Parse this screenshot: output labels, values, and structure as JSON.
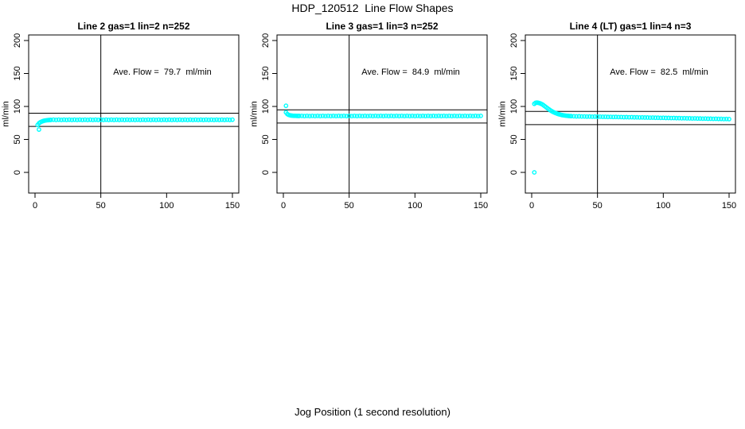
{
  "page": {
    "title": "HDP_120512  Line Flow Shapes",
    "xlabel": "Jog Position (1 second resolution)",
    "background": "#ffffff"
  },
  "colors": {
    "point": "#00ffff",
    "ref_line": "#000000",
    "box": "#000000",
    "text": "#000000"
  },
  "axes": {
    "y_ticks": [
      0,
      50,
      100,
      150,
      200
    ],
    "x_ticks": [
      0,
      50,
      100,
      150
    ],
    "ylim": [
      0,
      200
    ],
    "xlim": [
      0,
      150
    ]
  },
  "chart_data": [
    {
      "type": "scatter",
      "title": "Line 2 gas=1 lin=2 n=252",
      "annotation": "Ave. Flow =  79.7  ml/min",
      "avg_flow": 79.7,
      "ylabel": "ml/min",
      "ref_lines_y": [
        89.7,
        69.7
      ],
      "vline_x": 50,
      "outliers": [
        [
          3,
          65
        ]
      ],
      "points": [
        [
          2,
          72
        ],
        [
          3,
          74.5
        ],
        [
          4,
          76
        ],
        [
          5,
          77
        ],
        [
          6,
          77.8
        ],
        [
          7,
          78.4
        ],
        [
          8,
          78.8
        ],
        [
          9,
          79.1
        ],
        [
          10,
          79.3
        ],
        [
          11,
          79.5
        ],
        [
          12,
          79.6
        ],
        [
          14,
          79.9
        ],
        [
          16,
          79.6
        ],
        [
          18,
          79.9
        ],
        [
          20,
          79.6
        ],
        [
          22,
          79.9
        ],
        [
          24,
          79.6
        ],
        [
          26,
          79.9
        ],
        [
          28,
          79.6
        ],
        [
          30,
          79.9
        ],
        [
          32,
          79.6
        ],
        [
          34,
          79.9
        ],
        [
          36,
          79.6
        ],
        [
          38,
          79.9
        ],
        [
          40,
          79.6
        ],
        [
          42,
          79.9
        ],
        [
          44,
          79.6
        ],
        [
          46,
          79.9
        ],
        [
          48,
          79.6
        ],
        [
          50,
          79.9
        ],
        [
          52,
          79.6
        ],
        [
          54,
          79.9
        ],
        [
          56,
          79.6
        ],
        [
          58,
          79.9
        ],
        [
          60,
          79.6
        ],
        [
          62,
          79.9
        ],
        [
          64,
          79.6
        ],
        [
          66,
          79.9
        ],
        [
          68,
          79.6
        ],
        [
          70,
          79.9
        ],
        [
          72,
          79.6
        ],
        [
          74,
          79.9
        ],
        [
          76,
          79.6
        ],
        [
          78,
          79.9
        ],
        [
          80,
          79.6
        ],
        [
          82,
          79.9
        ],
        [
          84,
          79.6
        ],
        [
          86,
          79.9
        ],
        [
          88,
          79.6
        ],
        [
          90,
          79.9
        ],
        [
          92,
          79.6
        ],
        [
          94,
          79.9
        ],
        [
          96,
          79.6
        ],
        [
          98,
          79.9
        ],
        [
          100,
          79.6
        ],
        [
          102,
          79.9
        ],
        [
          104,
          79.6
        ],
        [
          106,
          79.9
        ],
        [
          108,
          79.6
        ],
        [
          110,
          79.9
        ],
        [
          112,
          79.6
        ],
        [
          114,
          79.9
        ],
        [
          116,
          79.6
        ],
        [
          118,
          79.9
        ],
        [
          120,
          79.6
        ],
        [
          122,
          79.9
        ],
        [
          124,
          79.6
        ],
        [
          126,
          79.9
        ],
        [
          128,
          79.6
        ],
        [
          130,
          79.9
        ],
        [
          132,
          79.6
        ],
        [
          134,
          79.9
        ],
        [
          136,
          79.6
        ],
        [
          138,
          79.9
        ],
        [
          140,
          79.6
        ],
        [
          142,
          79.9
        ],
        [
          144,
          79.6
        ],
        [
          146,
          79.9
        ],
        [
          148,
          79.6
        ],
        [
          150,
          79.9
        ]
      ]
    },
    {
      "type": "scatter",
      "title": "Line 3 gas=1 lin=3 n=252",
      "annotation": "Ave. Flow =  84.9  ml/min",
      "avg_flow": 84.9,
      "ylabel": "ml/min",
      "ref_lines_y": [
        94.9,
        74.9
      ],
      "vline_x": 50,
      "outliers": [
        [
          2,
          101
        ]
      ],
      "points": [
        [
          2,
          91
        ],
        [
          3,
          88.5
        ],
        [
          4,
          87.2
        ],
        [
          5,
          86.6
        ],
        [
          6,
          86.2
        ],
        [
          7,
          86
        ],
        [
          8,
          85.8
        ],
        [
          9,
          85.8
        ],
        [
          10,
          85.7
        ],
        [
          11,
          85.6
        ],
        [
          12,
          85.6
        ],
        [
          14,
          85.7
        ],
        [
          16,
          85.4
        ],
        [
          18,
          85.7
        ],
        [
          20,
          85.4
        ],
        [
          22,
          85.7
        ],
        [
          24,
          85.4
        ],
        [
          26,
          85.7
        ],
        [
          28,
          85.4
        ],
        [
          30,
          85.7
        ],
        [
          32,
          85.4
        ],
        [
          34,
          85.7
        ],
        [
          36,
          85.4
        ],
        [
          38,
          85.7
        ],
        [
          40,
          85.4
        ],
        [
          42,
          85.7
        ],
        [
          44,
          85.4
        ],
        [
          46,
          85.7
        ],
        [
          48,
          85.4
        ],
        [
          50,
          85.7
        ],
        [
          52,
          85.4
        ],
        [
          54,
          85.7
        ],
        [
          56,
          85.4
        ],
        [
          58,
          85.7
        ],
        [
          60,
          85.4
        ],
        [
          62,
          85.7
        ],
        [
          64,
          85.4
        ],
        [
          66,
          85.7
        ],
        [
          68,
          85.4
        ],
        [
          70,
          85.7
        ],
        [
          72,
          85.4
        ],
        [
          74,
          85.7
        ],
        [
          76,
          85.4
        ],
        [
          78,
          85.7
        ],
        [
          80,
          85.4
        ],
        [
          82,
          85.7
        ],
        [
          84,
          85.4
        ],
        [
          86,
          85.7
        ],
        [
          88,
          85.4
        ],
        [
          90,
          85.7
        ],
        [
          92,
          85.4
        ],
        [
          94,
          85.7
        ],
        [
          96,
          85.4
        ],
        [
          98,
          85.7
        ],
        [
          100,
          85.4
        ],
        [
          102,
          85.7
        ],
        [
          104,
          85.4
        ],
        [
          106,
          85.7
        ],
        [
          108,
          85.4
        ],
        [
          110,
          85.7
        ],
        [
          112,
          85.4
        ],
        [
          114,
          85.7
        ],
        [
          116,
          85.4
        ],
        [
          118,
          85.7
        ],
        [
          120,
          85.4
        ],
        [
          122,
          85.7
        ],
        [
          124,
          85.4
        ],
        [
          126,
          85.7
        ],
        [
          128,
          85.4
        ],
        [
          130,
          85.7
        ],
        [
          132,
          85.4
        ],
        [
          134,
          85.7
        ],
        [
          136,
          85.4
        ],
        [
          138,
          85.7
        ],
        [
          140,
          85.4
        ],
        [
          142,
          85.7
        ],
        [
          144,
          85.4
        ],
        [
          146,
          85.7
        ],
        [
          148,
          85.4
        ],
        [
          150,
          85.7
        ]
      ]
    },
    {
      "type": "scatter",
      "title": "Line 4 (LT) gas=1 lin=4 n=3",
      "annotation": "Ave. Flow =  82.5  ml/min",
      "avg_flow": 82.5,
      "ylabel": "ml/min",
      "ref_lines_y": [
        92.5,
        72.5
      ],
      "vline_x": 50,
      "outliers": [
        [
          2,
          0
        ]
      ],
      "points": [
        [
          2,
          104
        ],
        [
          3,
          105.5
        ],
        [
          4,
          105.8
        ],
        [
          5,
          105.5
        ],
        [
          6,
          105
        ],
        [
          7,
          104.2
        ],
        [
          8,
          103.2
        ],
        [
          9,
          101.8
        ],
        [
          10,
          100.3
        ],
        [
          11,
          98.8
        ],
        [
          12,
          97.3
        ],
        [
          13,
          95.8
        ],
        [
          14,
          94.4
        ],
        [
          15,
          93.1
        ],
        [
          16,
          92
        ],
        [
          17,
          91
        ],
        [
          18,
          90.1
        ],
        [
          19,
          89.3
        ],
        [
          20,
          88.6
        ],
        [
          21,
          88
        ],
        [
          22,
          87.5
        ],
        [
          23,
          87
        ],
        [
          24,
          86.6
        ],
        [
          25,
          86.3
        ],
        [
          26,
          86
        ],
        [
          27,
          85.8
        ],
        [
          28,
          85.6
        ],
        [
          29,
          85.4
        ],
        [
          30,
          85.3
        ],
        [
          32,
          85.1
        ],
        [
          34,
          84.9
        ],
        [
          36,
          85
        ],
        [
          38,
          84.8
        ],
        [
          40,
          84.8
        ],
        [
          42,
          84.6
        ],
        [
          44,
          84.7
        ],
        [
          46,
          84.5
        ],
        [
          48,
          84.6
        ],
        [
          50,
          84.4
        ],
        [
          52,
          84.5
        ],
        [
          54,
          84.3
        ],
        [
          56,
          84.3
        ],
        [
          58,
          84.1
        ],
        [
          60,
          84.2
        ],
        [
          62,
          84
        ],
        [
          64,
          84.1
        ],
        [
          66,
          83.9
        ],
        [
          68,
          83.9
        ],
        [
          70,
          83.7
        ],
        [
          72,
          83.8
        ],
        [
          74,
          83.6
        ],
        [
          76,
          83.7
        ],
        [
          78,
          83.5
        ],
        [
          80,
          83.5
        ],
        [
          82,
          83.3
        ],
        [
          84,
          83.4
        ],
        [
          86,
          83.2
        ],
        [
          88,
          83.2
        ],
        [
          90,
          83
        ],
        [
          92,
          83.1
        ],
        [
          94,
          82.9
        ],
        [
          96,
          82.9
        ],
        [
          98,
          82.7
        ],
        [
          100,
          82.8
        ],
        [
          102,
          82.6
        ],
        [
          104,
          82.6
        ],
        [
          106,
          82.4
        ],
        [
          108,
          82.5
        ],
        [
          110,
          82.3
        ],
        [
          112,
          82.3
        ],
        [
          114,
          82.1
        ],
        [
          116,
          82.2
        ],
        [
          118,
          82
        ],
        [
          120,
          82
        ],
        [
          122,
          81.8
        ],
        [
          124,
          81.9
        ],
        [
          126,
          81.7
        ],
        [
          128,
          81.7
        ],
        [
          130,
          81.5
        ],
        [
          132,
          81.6
        ],
        [
          134,
          81.4
        ],
        [
          136,
          81.4
        ],
        [
          138,
          81.2
        ],
        [
          140,
          81.3
        ],
        [
          142,
          81.1
        ],
        [
          144,
          81.1
        ],
        [
          146,
          80.9
        ],
        [
          148,
          81
        ],
        [
          150,
          80.8
        ]
      ]
    }
  ]
}
